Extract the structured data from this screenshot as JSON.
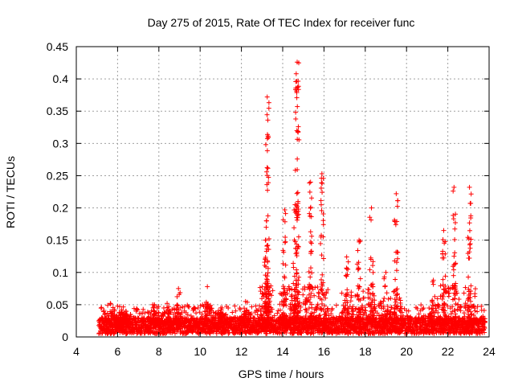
{
  "chart_data": {
    "type": "scatter",
    "title": "Day 275 of 2015, Rate Of TEC Index for receiver func",
    "xlabel": "GPS time / hours",
    "ylabel": "ROTI / TECUs",
    "xlim": [
      4,
      24
    ],
    "ylim": [
      0,
      0.45
    ],
    "x_ticks": [
      4,
      6,
      8,
      10,
      12,
      14,
      16,
      18,
      20,
      22,
      24
    ],
    "y_ticks": [
      0,
      0.05,
      0.1,
      0.15,
      0.2,
      0.25,
      0.3,
      0.35,
      0.4,
      0.45
    ],
    "x_tick_labels": [
      "4",
      "6",
      "8",
      "10",
      "12",
      "14",
      "16",
      "18",
      "20",
      "22",
      "24"
    ],
    "y_tick_labels": [
      "0",
      "0.05",
      "0.1",
      "0.15",
      "0.2",
      "0.25",
      "0.3",
      "0.35",
      "0.4",
      "0.45"
    ],
    "grid": true,
    "marker": "+",
    "color": "#ff0000",
    "baseline": {
      "x_start": 5.1,
      "x_end": 23.8,
      "step": 0.02,
      "y_min": 0.005,
      "y_max": 0.03
    },
    "bursts": [
      {
        "x": 5.65,
        "peak": 0.052
      },
      {
        "x": 6.2,
        "peak": 0.042
      },
      {
        "x": 6.4,
        "peak": 0.04
      },
      {
        "x": 7.7,
        "peak": 0.05
      },
      {
        "x": 8.4,
        "peak": 0.052
      },
      {
        "x": 8.95,
        "peak": 0.075
      },
      {
        "x": 10.35,
        "peak": 0.078
      },
      {
        "x": 11.0,
        "peak": 0.045
      },
      {
        "x": 12.2,
        "peak": 0.055
      },
      {
        "x": 13.25,
        "peak": 0.372
      },
      {
        "x": 13.2,
        "peak": 0.17
      },
      {
        "x": 14.1,
        "peak": 0.197
      },
      {
        "x": 14.7,
        "peak": 0.426
      },
      {
        "x": 14.6,
        "peak": 0.205
      },
      {
        "x": 15.35,
        "peak": 0.24
      },
      {
        "x": 15.9,
        "peak": 0.253
      },
      {
        "x": 17.1,
        "peak": 0.124
      },
      {
        "x": 17.7,
        "peak": 0.15
      },
      {
        "x": 18.3,
        "peak": 0.2
      },
      {
        "x": 19.0,
        "peak": 0.1
      },
      {
        "x": 19.5,
        "peak": 0.222
      },
      {
        "x": 21.3,
        "peak": 0.088
      },
      {
        "x": 21.8,
        "peak": 0.165
      },
      {
        "x": 22.3,
        "peak": 0.232
      },
      {
        "x": 23.05,
        "peak": 0.232
      }
    ]
  }
}
